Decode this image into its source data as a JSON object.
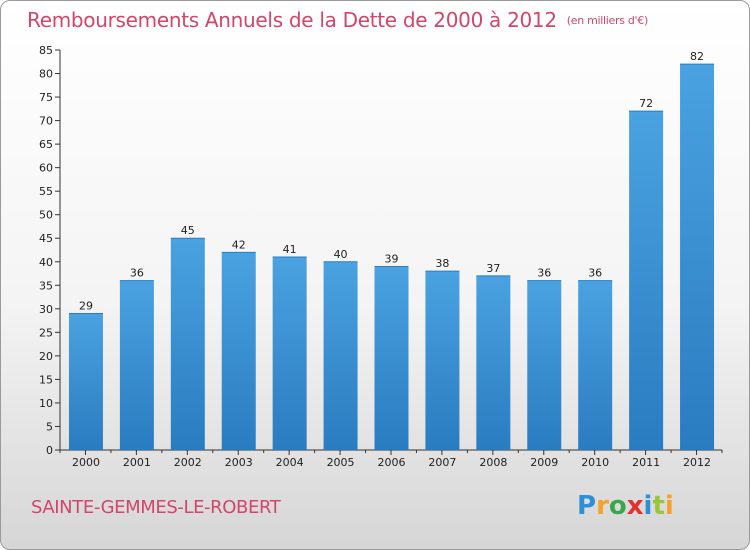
{
  "title": "Remboursements Annuels de la Dette de 2000 à 2012",
  "subtitle": "(en milliers d'€)",
  "commune": "SAINTE-GEMMES-LE-ROBERT",
  "logo": {
    "letters": [
      "P",
      "r",
      "o",
      "x",
      "i",
      "t",
      "i"
    ],
    "colors": [
      "#2e8fd6",
      "#f5a22a",
      "#3aa84a",
      "#e2322d",
      "#2e8fd6",
      "#9ac43c",
      "#f5a22a"
    ]
  },
  "colors": {
    "bar": "#4aa2e0",
    "bar_dark": "#2a7cc0",
    "title": "#d1466a"
  },
  "chart_data": {
    "type": "bar",
    "categories": [
      "2000",
      "2001",
      "2002",
      "2003",
      "2004",
      "2005",
      "2006",
      "2007",
      "2008",
      "2009",
      "2010",
      "2011",
      "2012"
    ],
    "values": [
      29,
      36,
      45,
      42,
      41,
      40,
      39,
      38,
      37,
      36,
      36,
      72,
      82
    ],
    "ylim": [
      0,
      85
    ],
    "yticks": [
      0,
      5,
      10,
      15,
      20,
      25,
      30,
      35,
      40,
      45,
      50,
      55,
      60,
      65,
      70,
      75,
      80,
      85
    ],
    "grid": false,
    "title": "Remboursements Annuels de la Dette de 2000 à 2012",
    "xlabel": "",
    "ylabel": ""
  }
}
